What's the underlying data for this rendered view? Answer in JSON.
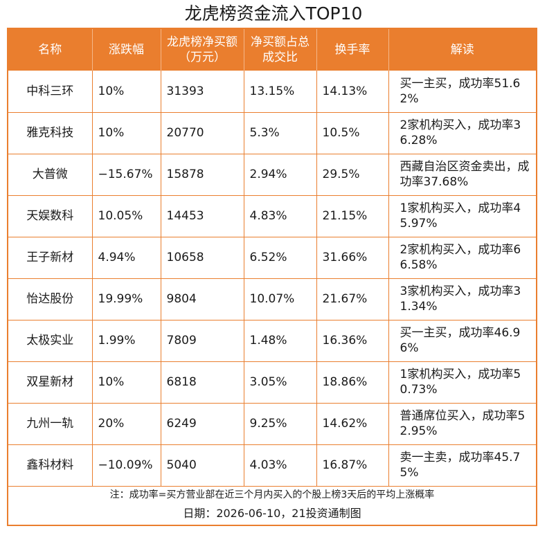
{
  "title": "龙虎榜资金流入TOP10",
  "headers": {
    "name": "名称",
    "change": "涨跌幅",
    "net_buy": "龙虎榜净买额（万元）",
    "ratio": "净买额占总成交比",
    "turnover": "换手率",
    "explain": "解读"
  },
  "rows": [
    {
      "name": "中科三环",
      "change": "10%",
      "net_buy": "31393",
      "ratio": "13.15%",
      "turnover": "14.13%",
      "explain": "买一主买，成功率51.62%"
    },
    {
      "name": "雅克科技",
      "change": "10%",
      "net_buy": "20770",
      "ratio": "5.3%",
      "turnover": "10.5%",
      "explain": "2家机构买入，成功率36.28%"
    },
    {
      "name": "大普微",
      "change": "−15.67%",
      "net_buy": "15878",
      "ratio": "2.94%",
      "turnover": "29.5%",
      "explain": "西藏自治区资金卖出，成功率37.68%"
    },
    {
      "name": "天娱数科",
      "change": "10.05%",
      "net_buy": "14453",
      "ratio": "4.83%",
      "turnover": "21.15%",
      "explain": "1家机构买入，成功率45.97%"
    },
    {
      "name": "王子新材",
      "change": "4.94%",
      "net_buy": "10658",
      "ratio": "6.52%",
      "turnover": "31.66%",
      "explain": "2家机构买入，成功率66.58%"
    },
    {
      "name": "怡达股份",
      "change": "19.99%",
      "net_buy": "9804",
      "ratio": "10.07%",
      "turnover": "21.67%",
      "explain": "3家机构买入，成功率31.34%"
    },
    {
      "name": "太极实业",
      "change": "1.99%",
      "net_buy": "7809",
      "ratio": "1.48%",
      "turnover": "16.36%",
      "explain": "买一主买，成功率46.96%"
    },
    {
      "name": "双星新材",
      "change": "10%",
      "net_buy": "6818",
      "ratio": "3.05%",
      "turnover": "18.86%",
      "explain": "1家机构买入，成功率50.73%"
    },
    {
      "name": "九州一轨",
      "change": "20%",
      "net_buy": "6249",
      "ratio": "9.25%",
      "turnover": "14.62%",
      "explain": "普通席位买入，成功率52.95%"
    },
    {
      "name": "鑫科材料",
      "change": "−10.09%",
      "net_buy": "5040",
      "ratio": "4.03%",
      "turnover": "16.87%",
      "explain": "卖一主卖，成功率45.75%"
    }
  ],
  "note": "注：成功率=买方营业部在近三个月内买入的个股上榜3天后的平均上涨概率",
  "date": "日期：2026-06-10，21投资通制图",
  "colors": {
    "accent": "#ea7e2e"
  }
}
